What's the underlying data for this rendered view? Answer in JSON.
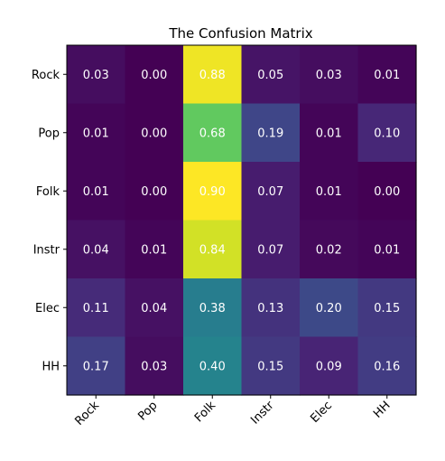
{
  "chart_data": {
    "type": "heatmap",
    "title": "The Confusion Matrix",
    "rows": [
      "Rock",
      "Pop",
      "Folk",
      "Instr",
      "Elec",
      "HH"
    ],
    "columns": [
      "Rock",
      "Pop",
      "Folk",
      "Instr",
      "Elec",
      "HH"
    ],
    "values": [
      [
        0.03,
        0.0,
        0.88,
        0.05,
        0.03,
        0.01
      ],
      [
        0.01,
        0.0,
        0.68,
        0.19,
        0.01,
        0.1
      ],
      [
        0.01,
        0.0,
        0.9,
        0.07,
        0.01,
        0.0
      ],
      [
        0.04,
        0.01,
        0.84,
        0.07,
        0.02,
        0.01
      ],
      [
        0.11,
        0.04,
        0.38,
        0.13,
        0.2,
        0.15
      ],
      [
        0.17,
        0.03,
        0.4,
        0.15,
        0.09,
        0.16
      ]
    ],
    "value_format": "0.00",
    "colormap": "viridis",
    "color_range": [
      0.0,
      0.9
    ],
    "grid": false,
    "x_tick_rotation_deg": 45
  }
}
